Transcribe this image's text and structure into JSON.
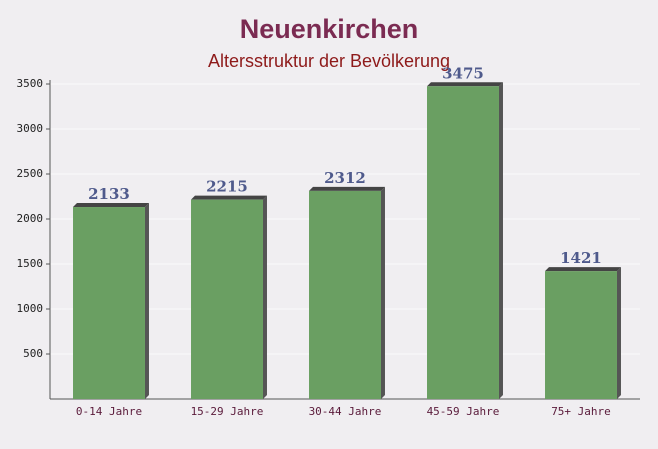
{
  "chart_data": {
    "type": "bar",
    "title": "Neuenkirchen",
    "subtitle": "Altersstruktur der Bevölkerung",
    "categories": [
      "0-14 Jahre",
      "15-29 Jahre",
      "30-44 Jahre",
      "45-59 Jahre",
      "75+ Jahre"
    ],
    "values": [
      2133,
      2215,
      2312,
      3475,
      1421
    ],
    "color": "#6a9f62",
    "ylim": [
      0,
      3500
    ],
    "yticks": [
      500,
      1000,
      1500,
      2000,
      2500,
      3000,
      3500
    ],
    "grid": true
  }
}
